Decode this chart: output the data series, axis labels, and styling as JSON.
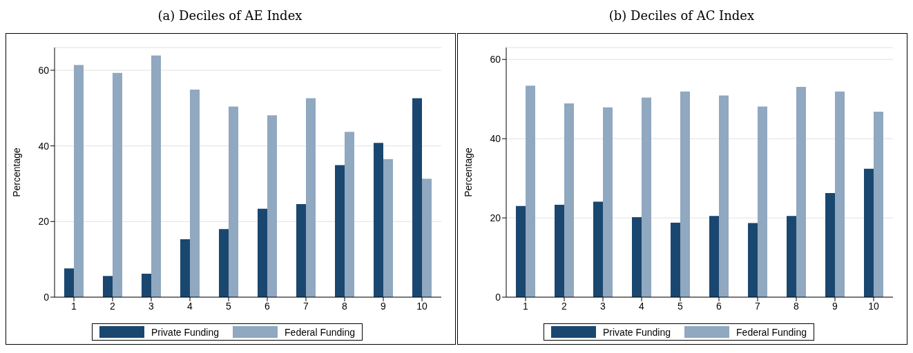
{
  "chart_data": [
    {
      "type": "bar",
      "title": "(a) Deciles of AE Index",
      "ylabel": "Percentage",
      "categories": [
        "1",
        "2",
        "3",
        "4",
        "5",
        "6",
        "7",
        "8",
        "9",
        "10"
      ],
      "series": [
        {
          "name": "Private Funding",
          "color": "#1a476f",
          "values": [
            7.6,
            5.6,
            6.2,
            15.3,
            18.0,
            23.4,
            24.6,
            34.9,
            40.8,
            52.6
          ]
        },
        {
          "name": "Federal Funding",
          "color": "#90a8c0",
          "values": [
            61.4,
            59.3,
            63.9,
            54.9,
            50.4,
            48.1,
            52.6,
            43.7,
            36.5,
            31.3
          ]
        }
      ],
      "ylim": [
        0,
        66
      ],
      "yticks": [
        0,
        20,
        40,
        60
      ],
      "grid": "y",
      "legend": "bottom"
    },
    {
      "type": "bar",
      "title": "(b) Deciles of AC Index",
      "ylabel": "Percentage",
      "categories": [
        "1",
        "2",
        "3",
        "4",
        "5",
        "6",
        "7",
        "8",
        "9",
        "10"
      ],
      "series": [
        {
          "name": "Private Funding",
          "color": "#1a476f",
          "values": [
            23.0,
            23.3,
            24.1,
            20.2,
            18.8,
            20.5,
            18.7,
            20.5,
            26.3,
            32.4
          ]
        },
        {
          "name": "Federal Funding",
          "color": "#90a8c0",
          "values": [
            53.4,
            48.9,
            47.9,
            50.4,
            51.9,
            50.9,
            48.1,
            53.1,
            51.9,
            46.8
          ]
        }
      ],
      "ylim": [
        0,
        63
      ],
      "yticks": [
        0,
        20,
        40,
        60
      ],
      "grid": "y",
      "legend": "bottom"
    }
  ]
}
